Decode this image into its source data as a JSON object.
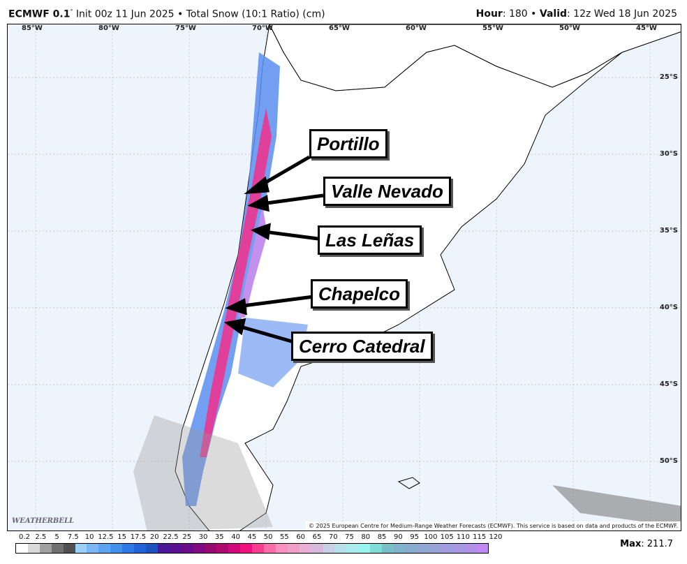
{
  "header": {
    "model": "ECMWF 0.1",
    "deg": "°",
    "init": "Init 00z 11 Jun 2025 • Total Snow (10:1 Ratio) (cm)",
    "hour_label": "Hour",
    "hour": ": 180 • ",
    "valid_label": "Valid",
    "valid": ": 12z Wed 18 Jun 2025"
  },
  "map": {
    "lon_labels": [
      "85°W",
      "80°W",
      "75°W",
      "70°W",
      "65°W",
      "60°W",
      "55°W",
      "50°W",
      "45°W"
    ],
    "lat_labels": [
      "25°S",
      "30°S",
      "35°S",
      "40°S",
      "45°S",
      "50°S"
    ],
    "callouts": [
      "Portillo",
      "Valle Nevado",
      "Las Leñas",
      "Chapelco",
      "Cerro Catedral"
    ],
    "copyright": "© 2025 European Centre for Medium-Range Weather Forecasts (ECMWF). This service is based on data and products of the ECMWF.",
    "logo": "WeatherBELL"
  },
  "colorbar": {
    "labels": [
      "0.2",
      "2.5",
      "5",
      "7.5",
      "10",
      "12.5",
      "15",
      "17.5",
      "20",
      "22.5",
      "25",
      "30",
      "35",
      "40",
      "45",
      "50",
      "55",
      "60",
      "65",
      "70",
      "75",
      "80",
      "85",
      "90",
      "95",
      "100",
      "105",
      "110",
      "115",
      "120"
    ],
    "colors": [
      "#ffffff",
      "#d9d9d9",
      "#a0a0a0",
      "#707070",
      "#505050",
      "#9bd0f8",
      "#7ab8f5",
      "#5aa4f0",
      "#4090ee",
      "#2c78e8",
      "#1e64d8",
      "#1a52c0",
      "#4a1898",
      "#5a1090",
      "#6c0c88",
      "#800a80",
      "#980870",
      "#b00870",
      "#d0087a",
      "#f01080",
      "#f83c90",
      "#fc6ca8",
      "#f890c0",
      "#f0a0c8",
      "#e8b0d4",
      "#d8b8dc",
      "#c8d0e8",
      "#b8e0ec",
      "#a8ecf0",
      "#98f4f0",
      "#80dcd8",
      "#78c0c8",
      "#80b4cc",
      "#88acd0",
      "#90a8d4",
      "#98a4d8",
      "#a09ce0",
      "#a898e4",
      "#b090e8",
      "#c088f0"
    ]
  },
  "max": {
    "label": "Max",
    "value": ": 211.7"
  }
}
